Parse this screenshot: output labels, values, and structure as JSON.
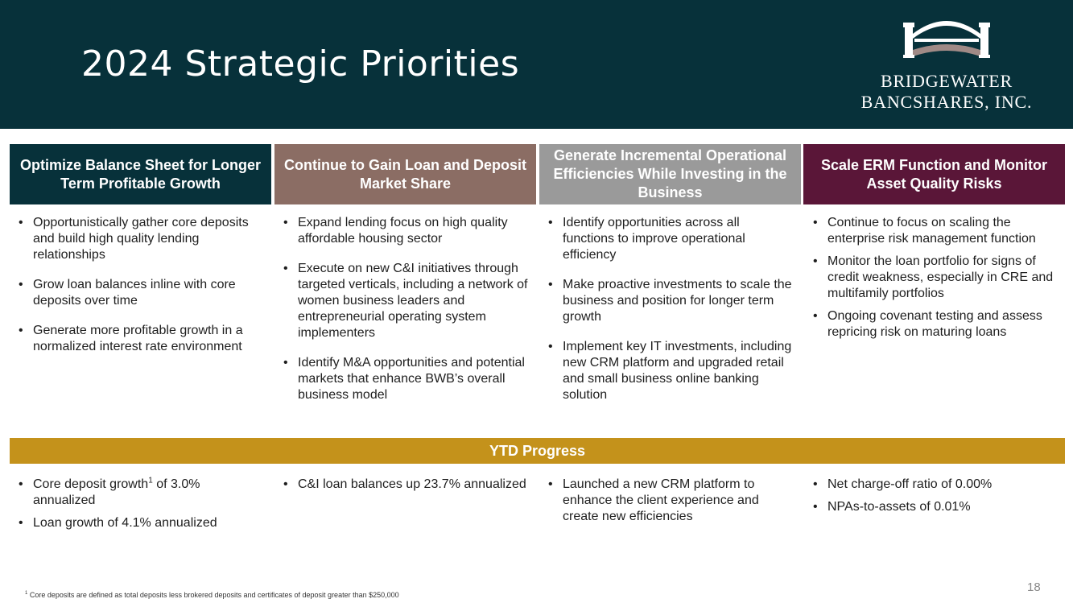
{
  "slide": {
    "title": "2024 Strategic Priorities",
    "page_number": "18"
  },
  "logo": {
    "line1": "BRIDGEWATER",
    "line2": "BANCSHARES, INC."
  },
  "columns": [
    {
      "heading": "Optimize Balance Sheet for Longer Term Profitable Growth",
      "color": "#07313a",
      "bullets": [
        "Opportunistically gather core deposits and build high quality lending relationships",
        "Grow loan balances inline with core deposits over time",
        "Generate more profitable growth in a normalized interest rate environment"
      ]
    },
    {
      "heading": "Continue to Gain Loan and Deposit Market Share",
      "color": "#8b6d64",
      "bullets": [
        "Expand lending focus on high quality affordable housing sector",
        "Execute on new C&I initiatives through targeted verticals, including a network of women business leaders and entrepreneurial operating system implementers",
        "Identify M&A opportunities and potential markets that enhance BWB’s overall business model"
      ]
    },
    {
      "heading": "Generate Incremental Operational Efficiencies While Investing in the Business",
      "color": "#9a9a9a",
      "bullets": [
        "Identify opportunities across all functions to improve operational efficiency",
        "Make proactive investments to scale the business and position for longer term growth",
        "Implement key IT investments, including new CRM platform and upgraded retail and small business online banking solution"
      ]
    },
    {
      "heading": "Scale ERM Function and Monitor Asset Quality Risks",
      "color": "#5a1638",
      "bullets": [
        "Continue to focus on scaling the enterprise risk management function",
        "Monitor the loan portfolio for signs of credit weakness, especially in CRE and multifamily portfolios",
        "Ongoing covenant testing and assess repricing risk on maturing loans"
      ]
    }
  ],
  "ytd": {
    "heading": "YTD Progress",
    "color": "#c4921b",
    "col1": {
      "item1_pre": "Core deposit growth",
      "item1_sup": "1",
      "item1_post": " of 3.0% annualized",
      "item2": "Loan growth of 4.1% annualized"
    },
    "col2": [
      "C&I loan balances up 23.7% annualized"
    ],
    "col3": [
      "Launched a new CRM platform to enhance the client experience and create new efficiencies"
    ],
    "col4": [
      "Net charge-off ratio of 0.00%",
      "NPAs-to-assets of 0.01%"
    ]
  },
  "footnote": {
    "marker": "1",
    "text": " Core deposits are defined as total deposits less brokered deposits and certificates of deposit greater than $250,000"
  }
}
